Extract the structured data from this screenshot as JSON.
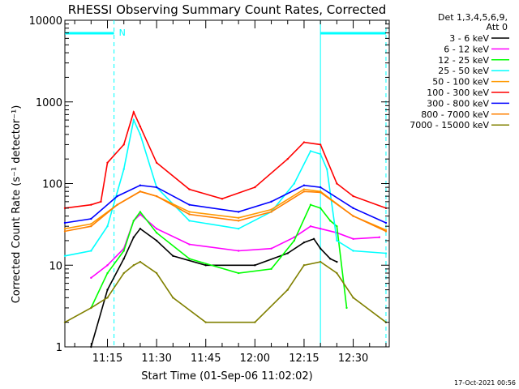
{
  "chart_data": {
    "type": "line",
    "title": "RHESSI Observing Summary Count Rates, Corrected",
    "xlabel": "Start Time (01-Sep-06 11:02:02)",
    "ylabel": "Corrected Count Rate (s⁻¹ detector⁻¹)",
    "y_scale": "log",
    "ylim": [
      1,
      10000
    ],
    "y_ticks": [
      1,
      10,
      100,
      1000,
      10000
    ],
    "y_tick_labels": [
      "1",
      "10",
      "100",
      "1000",
      "10000"
    ],
    "xlim": [
      "11:02",
      "12:41"
    ],
    "x_tick_labels": [
      "11:15",
      "11:30",
      "11:45",
      "12:00",
      "12:15",
      "12:30"
    ],
    "x_ticks": [
      "11:15",
      "11:30",
      "11:45",
      "12:00",
      "12:15",
      "12:30"
    ],
    "legend_header": [
      "Det 1,3,4,5,6,9,",
      "Att 0"
    ],
    "legend_position": "right, outside plot",
    "flag_label": "N",
    "footer": "17-Oct-2021 00:56",
    "series": [
      {
        "name": "3 - 6 keV",
        "color": "#000000",
        "x": [
          "11:10",
          "11:15",
          "11:20",
          "11:23",
          "11:25",
          "11:30",
          "11:35",
          "11:45",
          "12:00",
          "12:10",
          "12:15",
          "12:18",
          "12:20",
          "12:23",
          "12:25"
        ],
        "values": [
          1,
          5,
          12,
          22,
          28,
          20,
          13,
          10,
          10,
          14,
          19,
          21,
          16,
          12,
          11
        ]
      },
      {
        "name": "6 - 12 keV",
        "color": "#ff00ff",
        "x": [
          "11:10",
          "11:15",
          "11:20",
          "11:23",
          "11:25",
          "11:30",
          "11:40",
          "11:55",
          "12:05",
          "12:12",
          "12:17",
          "12:20",
          "12:25",
          "12:30",
          "12:38"
        ],
        "values": [
          7,
          10,
          16,
          35,
          42,
          28,
          18,
          15,
          16,
          22,
          30,
          28,
          25,
          21,
          22
        ]
      },
      {
        "name": "12 - 25 keV",
        "color": "#00ff00",
        "x": [
          "11:10",
          "11:15",
          "11:20",
          "11:23",
          "11:25",
          "11:30",
          "11:40",
          "11:55",
          "12:05",
          "12:12",
          "12:17",
          "12:20",
          "12:23",
          "12:25",
          "12:28"
        ],
        "values": [
          3,
          8,
          15,
          35,
          45,
          25,
          12,
          8,
          9,
          20,
          55,
          50,
          35,
          30,
          3
        ]
      },
      {
        "name": "25 - 50 keV",
        "color": "#00ffff",
        "x": [
          "11:02",
          "11:10",
          "11:15",
          "11:20",
          "11:23",
          "11:25",
          "11:30",
          "11:40",
          "11:55",
          "12:05",
          "12:12",
          "12:17",
          "12:20",
          "12:22",
          "12:25",
          "12:30",
          "12:40"
        ],
        "values": [
          13,
          15,
          30,
          150,
          600,
          400,
          90,
          35,
          28,
          45,
          100,
          250,
          230,
          150,
          20,
          15,
          14
        ]
      },
      {
        "name": "50 - 100 keV",
        "color": "#ff9900",
        "x": [
          "11:02",
          "11:10",
          "11:18",
          "11:25",
          "11:30",
          "11:40",
          "11:55",
          "12:05",
          "12:15",
          "12:20",
          "12:30",
          "12:40"
        ],
        "values": [
          28,
          32,
          55,
          80,
          70,
          45,
          38,
          48,
          85,
          80,
          40,
          27
        ]
      },
      {
        "name": "100 - 300 keV",
        "color": "#ff0000",
        "x": [
          "11:02",
          "11:10",
          "11:13",
          "11:15",
          "11:20",
          "11:23",
          "11:25",
          "11:30",
          "11:40",
          "11:50",
          "12:00",
          "12:10",
          "12:15",
          "12:20",
          "12:25",
          "12:30",
          "12:40"
        ],
        "values": [
          50,
          55,
          60,
          180,
          300,
          750,
          500,
          180,
          85,
          65,
          90,
          200,
          320,
          300,
          100,
          70,
          50
        ]
      },
      {
        "name": "300 - 800 keV",
        "color": "#0000ff",
        "x": [
          "11:02",
          "11:10",
          "11:18",
          "11:25",
          "11:30",
          "11:40",
          "11:55",
          "12:05",
          "12:15",
          "12:20",
          "12:30",
          "12:40"
        ],
        "values": [
          33,
          37,
          70,
          95,
          90,
          55,
          45,
          60,
          95,
          90,
          50,
          33
        ]
      },
      {
        "name": "800 - 7000 keV",
        "color": "#ff8000",
        "x": [
          "11:02",
          "11:10",
          "11:18",
          "11:25",
          "11:30",
          "11:40",
          "11:55",
          "12:05",
          "12:15",
          "12:20",
          "12:30",
          "12:40"
        ],
        "values": [
          26,
          30,
          55,
          80,
          70,
          42,
          35,
          45,
          80,
          78,
          40,
          26
        ]
      },
      {
        "name": "7000 - 15000 keV",
        "color": "#808000",
        "x": [
          "11:02",
          "11:10",
          "11:15",
          "11:20",
          "11:23",
          "11:25",
          "11:30",
          "11:35",
          "11:45",
          "12:00",
          "12:10",
          "12:15",
          "12:20",
          "12:25",
          "12:30",
          "12:40"
        ],
        "values": [
          2,
          3,
          4,
          8,
          10,
          11,
          8,
          4,
          2,
          2,
          5,
          10,
          11,
          8,
          4,
          2
        ]
      }
    ],
    "annotations": {
      "vertical_lines": [
        {
          "time": "11:17",
          "style": "dashed",
          "color": "#00ffff"
        },
        {
          "time": "12:20",
          "style": "solid",
          "color": "#00ffff"
        },
        {
          "time": "12:40",
          "style": "dashed",
          "color": "#00ffff"
        }
      ],
      "top_bars": [
        {
          "from": "11:02",
          "to": "11:17",
          "color": "#00ffff"
        },
        {
          "from": "12:20",
          "to": "12:40",
          "color": "#00ffff"
        }
      ]
    }
  }
}
